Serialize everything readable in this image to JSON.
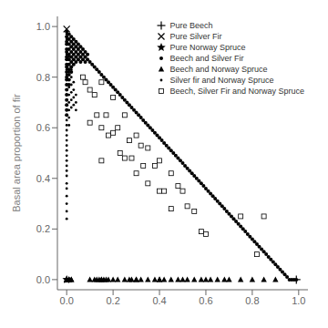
{
  "chart_data": {
    "type": "scatter",
    "ylabel": "Basal area proportion of fir",
    "xlim": [
      -0.04,
      1.04
    ],
    "ylim": [
      -0.04,
      1.04
    ],
    "xticks": [
      {
        "value": 0.0,
        "label": "0.0"
      },
      0.2,
      0.4,
      0.6,
      0.8,
      {
        "value": 1.0,
        "label": "1.0"
      }
    ],
    "yticks": [
      {
        "value": 0.0,
        "label": "0.0"
      },
      0.2,
      0.4,
      0.6,
      0.8,
      {
        "value": 1.0,
        "label": "1.0"
      }
    ],
    "grid": false,
    "legend": "upper right",
    "series": [
      {
        "name": "Pure Beech",
        "color": "#000000",
        "marker": "plus",
        "x": [
          0.99
        ],
        "values": [
          0.0
        ]
      },
      {
        "name": "Pure Silver Fir",
        "color": "#000000",
        "marker": "x",
        "x": [
          0.0
        ],
        "values": [
          0.99
        ]
      },
      {
        "name": "Pure Norway Spruce",
        "color": "#000000",
        "marker": "star",
        "x": [
          0.0
        ],
        "values": [
          0.0
        ]
      },
      {
        "name": "Beech and Silver Fir",
        "color": "#000000",
        "marker": "circle",
        "x": [
          0.0,
          0.0,
          0.0,
          0.0,
          0.0,
          0.0,
          0.0,
          0.0,
          0.0,
          0.0,
          0.0,
          0.0,
          0.0,
          0.0,
          0.0,
          0.0,
          0.0,
          0.0,
          0.0,
          0.0,
          0.01,
          0.01,
          0.01,
          0.01,
          0.01,
          0.01,
          0.01,
          0.01,
          0.01,
          0.01,
          0.01,
          0.02,
          0.02,
          0.02,
          0.02,
          0.02,
          0.02,
          0.02,
          0.02,
          0.03,
          0.03,
          0.03,
          0.03,
          0.03,
          0.03,
          0.04,
          0.04,
          0.04,
          0.04,
          0.04,
          0.05,
          0.05,
          0.05,
          0.05,
          0.06,
          0.06,
          0.06,
          0.06,
          0.07,
          0.07,
          0.07,
          0.08,
          0.08,
          0.08,
          0.09,
          0.09,
          0.1,
          0.11,
          0.12,
          0.13,
          0.14,
          0.15,
          0.16,
          0.17,
          0.18,
          0.19,
          0.2,
          0.21,
          0.22,
          0.23,
          0.24,
          0.25,
          0.26,
          0.27,
          0.28,
          0.29,
          0.3,
          0.31,
          0.32,
          0.33,
          0.34,
          0.35,
          0.36,
          0.37,
          0.38,
          0.39,
          0.4,
          0.41,
          0.42,
          0.43,
          0.44,
          0.45,
          0.46,
          0.47,
          0.48,
          0.49,
          0.5,
          0.51,
          0.52,
          0.53,
          0.54,
          0.55,
          0.56,
          0.57,
          0.58,
          0.59,
          0.6,
          0.61,
          0.62,
          0.63,
          0.64,
          0.65,
          0.66,
          0.67,
          0.68,
          0.69,
          0.7,
          0.71,
          0.72,
          0.73,
          0.74,
          0.75,
          0.76,
          0.77,
          0.78,
          0.79,
          0.8,
          0.81,
          0.82,
          0.83,
          0.84,
          0.85,
          0.86,
          0.87,
          0.88,
          0.89,
          0.9,
          0.91,
          0.92,
          0.93,
          0.94,
          0.95,
          0.96,
          0.97,
          0.98,
          0.99
        ],
        "values": [
          0.98,
          0.96,
          0.94,
          0.93,
          0.91,
          0.9,
          0.88,
          0.87,
          0.85,
          0.84,
          0.82,
          0.8,
          0.79,
          0.77,
          0.75,
          0.73,
          0.71,
          0.69,
          0.67,
          0.65,
          0.97,
          0.95,
          0.93,
          0.91,
          0.89,
          0.87,
          0.85,
          0.83,
          0.81,
          0.79,
          0.77,
          0.96,
          0.94,
          0.92,
          0.9,
          0.88,
          0.86,
          0.84,
          0.82,
          0.95,
          0.93,
          0.91,
          0.89,
          0.87,
          0.85,
          0.94,
          0.92,
          0.9,
          0.88,
          0.86,
          0.93,
          0.91,
          0.89,
          0.87,
          0.92,
          0.9,
          0.88,
          0.86,
          0.91,
          0.89,
          0.87,
          0.9,
          0.88,
          0.86,
          0.89,
          0.87,
          0.86,
          0.85,
          0.84,
          0.83,
          0.82,
          0.81,
          0.8,
          0.79,
          0.78,
          0.77,
          0.76,
          0.75,
          0.74,
          0.73,
          0.72,
          0.71,
          0.7,
          0.69,
          0.68,
          0.67,
          0.66,
          0.65,
          0.64,
          0.63,
          0.62,
          0.61,
          0.6,
          0.59,
          0.58,
          0.57,
          0.56,
          0.55,
          0.54,
          0.53,
          0.52,
          0.51,
          0.5,
          0.49,
          0.48,
          0.47,
          0.46,
          0.45,
          0.44,
          0.43,
          0.42,
          0.41,
          0.4,
          0.39,
          0.38,
          0.37,
          0.36,
          0.35,
          0.34,
          0.33,
          0.32,
          0.31,
          0.3,
          0.29,
          0.28,
          0.27,
          0.26,
          0.25,
          0.24,
          0.23,
          0.22,
          0.21,
          0.2,
          0.19,
          0.18,
          0.17,
          0.16,
          0.15,
          0.14,
          0.13,
          0.12,
          0.11,
          0.1,
          0.09,
          0.08,
          0.07,
          0.06,
          0.05,
          0.04,
          0.03,
          0.02,
          0.01,
          0.0,
          0.0,
          0.0,
          0.0
        ]
      },
      {
        "name": "Beech and Norway Spruce",
        "color": "#000000",
        "marker": "triangle",
        "x": [
          0.0,
          0.0,
          0.0,
          0.0,
          0.0,
          0.0,
          0.0,
          0.01,
          0.01,
          0.01,
          0.01,
          0.02,
          0.02,
          0.1,
          0.12,
          0.13,
          0.14,
          0.15,
          0.15,
          0.16,
          0.17,
          0.18,
          0.2,
          0.22,
          0.25,
          0.27,
          0.28,
          0.3,
          0.3,
          0.32,
          0.35,
          0.38,
          0.4,
          0.4,
          0.42,
          0.45,
          0.48,
          0.5,
          0.52,
          0.55,
          0.58,
          0.6,
          0.62,
          0.65,
          0.68,
          0.7,
          0.75,
          0.8,
          0.85,
          0.9
        ],
        "values": [
          0.0,
          0.0,
          0.0,
          0.0,
          0.0,
          0.0,
          0.0,
          0.0,
          0.0,
          0.0,
          0.0,
          0.0,
          0.0,
          0.0,
          0.0,
          0.0,
          0.0,
          0.0,
          0.0,
          0.0,
          0.0,
          0.0,
          0.0,
          0.0,
          0.0,
          0.0,
          0.0,
          0.0,
          0.0,
          0.0,
          0.0,
          0.0,
          0.0,
          0.0,
          0.0,
          0.0,
          0.0,
          0.0,
          0.0,
          0.0,
          0.0,
          0.0,
          0.0,
          0.0,
          0.0,
          0.0,
          0.0,
          0.0,
          0.0,
          0.0
        ]
      },
      {
        "name": "Silver fir and Norway Spruce",
        "color": "#000000",
        "marker": "point",
        "x": [
          0.0,
          0.0,
          0.0,
          0.0,
          0.0,
          0.0,
          0.0,
          0.0,
          0.0,
          0.0,
          0.0,
          0.0,
          0.0,
          0.0,
          0.0,
          0.0,
          0.0,
          0.0,
          0.0,
          0.0,
          0.0,
          0.0,
          0.0,
          0.0,
          0.0,
          0.0,
          0.0,
          0.0,
          0.0,
          0.0,
          0.0,
          0.0,
          0.0,
          0.0,
          0.0,
          0.01,
          0.01,
          0.01,
          0.01,
          0.01,
          0.01,
          0.01,
          0.01,
          0.01,
          0.01,
          0.02,
          0.02,
          0.02,
          0.02,
          0.02,
          0.02,
          0.03,
          0.03,
          0.03,
          0.03,
          0.04,
          0.04,
          0.04
        ],
        "values": [
          0.97,
          0.95,
          0.93,
          0.91,
          0.89,
          0.87,
          0.85,
          0.83,
          0.81,
          0.79,
          0.77,
          0.75,
          0.73,
          0.71,
          0.69,
          0.67,
          0.65,
          0.63,
          0.61,
          0.59,
          0.57,
          0.55,
          0.53,
          0.51,
          0.49,
          0.47,
          0.45,
          0.43,
          0.41,
          0.38,
          0.36,
          0.33,
          0.3,
          0.27,
          0.24,
          0.88,
          0.85,
          0.82,
          0.79,
          0.76,
          0.73,
          0.7,
          0.67,
          0.64,
          0.61,
          0.83,
          0.8,
          0.77,
          0.74,
          0.71,
          0.68,
          0.78,
          0.75,
          0.72,
          0.69,
          0.73,
          0.7,
          0.67
        ]
      },
      {
        "name": "Beech, Silver Fir and Norway Spruce",
        "color": "#000000",
        "marker": "square",
        "x": [
          0.07,
          0.08,
          0.1,
          0.1,
          0.12,
          0.13,
          0.15,
          0.15,
          0.15,
          0.17,
          0.18,
          0.2,
          0.2,
          0.22,
          0.23,
          0.25,
          0.25,
          0.27,
          0.28,
          0.3,
          0.3,
          0.32,
          0.33,
          0.35,
          0.35,
          0.38,
          0.4,
          0.4,
          0.42,
          0.45,
          0.45,
          0.48,
          0.5,
          0.52,
          0.55,
          0.58,
          0.6,
          0.75,
          0.82,
          0.85
        ],
        "values": [
          0.8,
          0.78,
          0.75,
          0.62,
          0.73,
          0.65,
          0.78,
          0.6,
          0.47,
          0.65,
          0.57,
          0.72,
          0.58,
          0.6,
          0.5,
          0.65,
          0.48,
          0.55,
          0.48,
          0.57,
          0.42,
          0.53,
          0.45,
          0.52,
          0.38,
          0.45,
          0.47,
          0.35,
          0.35,
          0.42,
          0.28,
          0.37,
          0.35,
          0.29,
          0.27,
          0.19,
          0.18,
          0.25,
          0.1,
          0.25
        ]
      }
    ]
  }
}
